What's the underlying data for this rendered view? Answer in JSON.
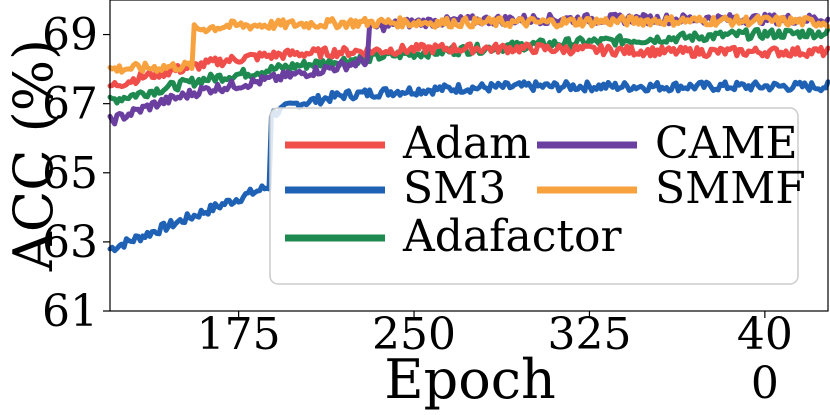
{
  "chart_data": {
    "type": "line",
    "title": "",
    "xlabel": "Epoch",
    "ylabel": "ACC (%)",
    "xlim": [
      120,
      427
    ],
    "ylim": [
      61,
      70
    ],
    "xticks": [
      175,
      250,
      325,
      400
    ],
    "xtick_labels": [
      {
        "line1": "175",
        "line2": ""
      },
      {
        "line1": "250",
        "line2": ""
      },
      {
        "line1": "325",
        "line2": ""
      },
      {
        "line1": "40",
        "line2": "0"
      }
    ],
    "yticks": [
      61,
      63,
      65,
      67,
      69
    ],
    "yticklabels": [
      "61",
      "63",
      "65",
      "67",
      "69"
    ],
    "legend_position": "center-right",
    "series": [
      {
        "name": "Adam",
        "color": "#ef4e4a",
        "x": [
          120,
          135,
          150,
          165,
          180,
          200,
          220,
          240,
          260,
          280,
          300,
          330,
          360,
          390,
          427
        ],
        "y": [
          67.5,
          67.8,
          68.0,
          68.2,
          68.35,
          68.45,
          68.5,
          68.55,
          68.6,
          68.6,
          68.6,
          68.55,
          68.5,
          68.5,
          68.5
        ]
      },
      {
        "name": "SM3",
        "color": "#1f62b5",
        "x": [
          120,
          135,
          150,
          165,
          180,
          188,
          189,
          200,
          220,
          240,
          270,
          300,
          350,
          400,
          427
        ],
        "y": [
          62.8,
          63.2,
          63.6,
          64.0,
          64.4,
          64.6,
          66.7,
          67.0,
          67.25,
          67.35,
          67.45,
          67.5,
          67.5,
          67.5,
          67.5
        ]
      },
      {
        "name": "Adafactor",
        "color": "#1e8a50",
        "x": [
          120,
          140,
          160,
          180,
          200,
          220,
          240,
          260,
          280,
          300,
          330,
          360,
          390,
          427
        ],
        "y": [
          67.1,
          67.4,
          67.7,
          67.9,
          68.1,
          68.25,
          68.4,
          68.5,
          68.6,
          68.7,
          68.8,
          68.9,
          69.0,
          69.05
        ]
      },
      {
        "name": "CAME",
        "color": "#6b3fa0",
        "x": [
          120,
          140,
          160,
          180,
          200,
          220,
          230,
          231,
          250,
          270,
          300,
          350,
          400,
          427
        ],
        "y": [
          66.5,
          67.0,
          67.4,
          67.6,
          67.85,
          68.1,
          68.25,
          69.2,
          69.35,
          69.4,
          69.45,
          69.45,
          69.45,
          69.45
        ]
      },
      {
        "name": "SMMF",
        "color": "#f7a13f",
        "x": [
          120,
          140,
          155,
          156,
          170,
          200,
          230,
          260,
          300,
          350,
          400,
          427
        ],
        "y": [
          68.0,
          68.05,
          68.1,
          69.15,
          69.25,
          69.3,
          69.35,
          69.35,
          69.35,
          69.4,
          69.4,
          69.35
        ]
      }
    ]
  }
}
